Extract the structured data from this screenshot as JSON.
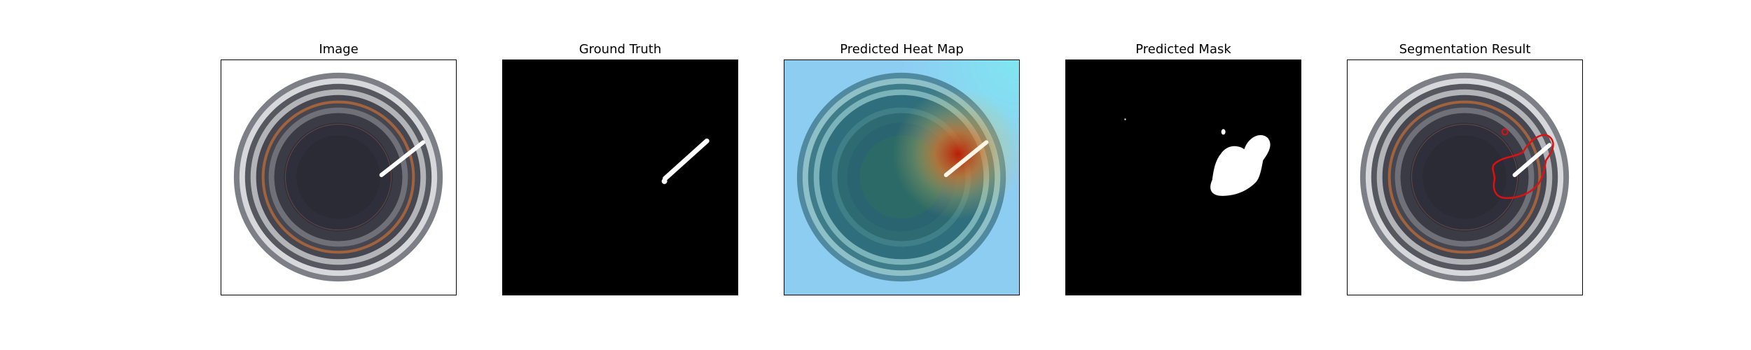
{
  "figure": {
    "panels": [
      {
        "id": "image",
        "title": "Image"
      },
      {
        "id": "ground-truth",
        "title": "Ground Truth"
      },
      {
        "id": "heat-map",
        "title": "Predicted Heat Map"
      },
      {
        "id": "mask",
        "title": "Predicted Mask"
      },
      {
        "id": "segmentation",
        "title": "Segmentation Result"
      }
    ]
  },
  "colors": {
    "figure_background": "#ffffff",
    "panel_border": "#000000",
    "mask_background": "#000000",
    "mask_foreground": "#ffffff",
    "contour": "#e01010",
    "heatmap_cool": "#8ecdf2",
    "heatmap_hot": "#c01a00",
    "bottle_dark": "#2a2a36",
    "rim_grey": "#8a8c92",
    "copper_ring": "#b86a3a"
  }
}
